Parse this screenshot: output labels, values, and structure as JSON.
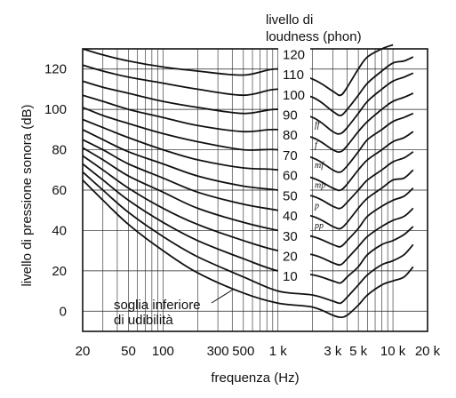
{
  "chart_data": {
    "type": "line",
    "title": "",
    "xlabel": "frequenza (Hz)",
    "ylabel": "livello di pressione sonora (dB)",
    "x_scale": "log",
    "xlim": [
      20,
      20000
    ],
    "ylim": [
      -10,
      130
    ],
    "grid": true,
    "x_ticks": [
      {
        "value": 20,
        "label": "20"
      },
      {
        "value": 50,
        "label": "50"
      },
      {
        "value": 100,
        "label": "100"
      },
      {
        "value": 300,
        "label": "300"
      },
      {
        "value": 500,
        "label": "500"
      },
      {
        "value": 1000,
        "label": "1 k"
      },
      {
        "value": 3000,
        "label": "3 k"
      },
      {
        "value": 5000,
        "label": "5 k"
      },
      {
        "value": 10000,
        "label": "10 k"
      },
      {
        "value": 20000,
        "label": "20 k"
      }
    ],
    "y_ticks": [
      {
        "value": 0,
        "label": "0"
      },
      {
        "value": 20,
        "label": "20"
      },
      {
        "value": 40,
        "label": "40"
      },
      {
        "value": 60,
        "label": "60"
      },
      {
        "value": 80,
        "label": "80"
      },
      {
        "value": 100,
        "label": "100"
      },
      {
        "value": 120,
        "label": "120"
      }
    ],
    "legend_title": [
      "livello di",
      "loudness (phon)"
    ],
    "annotation": [
      "soglia inferiore",
      "di udibilità"
    ],
    "x": [
      20,
      30,
      50,
      100,
      200,
      500,
      1000,
      2000,
      3000,
      3500,
      4000,
      5000,
      6000,
      8000,
      10000,
      12500,
      15000
    ],
    "series": [
      {
        "name": "120",
        "values": [
          130,
          127,
          124,
          121,
          119,
          117,
          120,
          115,
          109,
          107,
          111,
          120,
          126,
          130,
          132,
          null,
          null
        ],
        "dynamic": ""
      },
      {
        "name": "110",
        "values": [
          122,
          119,
          116,
          113,
          110,
          107,
          110,
          106,
          99,
          97,
          100,
          107,
          113,
          119,
          123,
          124,
          126
        ],
        "dynamic": ""
      },
      {
        "name": "100",
        "values": [
          114,
          111,
          108,
          104,
          101,
          98,
          100,
          96,
          89,
          88,
          91,
          98,
          104,
          110,
          114,
          116,
          118
        ],
        "dynamic": ""
      },
      {
        "name": "90",
        "values": [
          107,
          104,
          100,
          96,
          92,
          89,
          90,
          86,
          80,
          79,
          82,
          89,
          94,
          100,
          104,
          106,
          108
        ],
        "dynamic": "ff"
      },
      {
        "name": "80",
        "values": [
          101,
          97,
          93,
          88,
          84,
          80,
          80,
          76,
          70,
          69,
          72,
          79,
          85,
          90,
          94,
          96,
          98
        ],
        "dynamic": "f"
      },
      {
        "name": "70",
        "values": [
          95,
          91,
          86,
          80,
          75,
          71,
          70,
          66,
          61,
          60,
          63,
          70,
          75,
          80,
          84,
          86,
          89
        ],
        "dynamic": "mf"
      },
      {
        "name": "60",
        "values": [
          90,
          85,
          79,
          73,
          67,
          62,
          60,
          57,
          52,
          51,
          54,
          60,
          65,
          70,
          74,
          76,
          79
        ],
        "dynamic": "mp"
      },
      {
        "name": "50",
        "values": [
          85,
          80,
          73,
          66,
          59,
          53,
          50,
          47,
          42,
          41,
          44,
          51,
          56,
          61,
          65,
          66,
          70
        ],
        "dynamic": "p"
      },
      {
        "name": "40",
        "values": [
          81,
          75,
          67,
          59,
          51,
          44,
          40,
          37,
          33,
          32,
          35,
          41,
          47,
          52,
          55,
          57,
          61
        ],
        "dynamic": "pp"
      },
      {
        "name": "30",
        "values": [
          77,
          70,
          61,
          51,
          43,
          35,
          30,
          28,
          24,
          23,
          26,
          32,
          37,
          42,
          45,
          47,
          51
        ],
        "dynamic": ""
      },
      {
        "name": "20",
        "values": [
          73,
          65,
          55,
          44,
          35,
          26,
          20,
          18,
          15,
          14,
          17,
          22,
          28,
          33,
          35,
          38,
          42
        ],
        "dynamic": ""
      },
      {
        "name": "10",
        "values": [
          69,
          60,
          49,
          37,
          27,
          17,
          10,
          8,
          5,
          4,
          7,
          13,
          18,
          23,
          25,
          28,
          33
        ],
        "dynamic": ""
      },
      {
        "name": "",
        "values": [
          65,
          55,
          43,
          30,
          19,
          9,
          4,
          2,
          -2,
          -3,
          -2,
          3,
          8,
          13,
          15,
          17,
          22
        ],
        "dynamic": ""
      }
    ]
  }
}
